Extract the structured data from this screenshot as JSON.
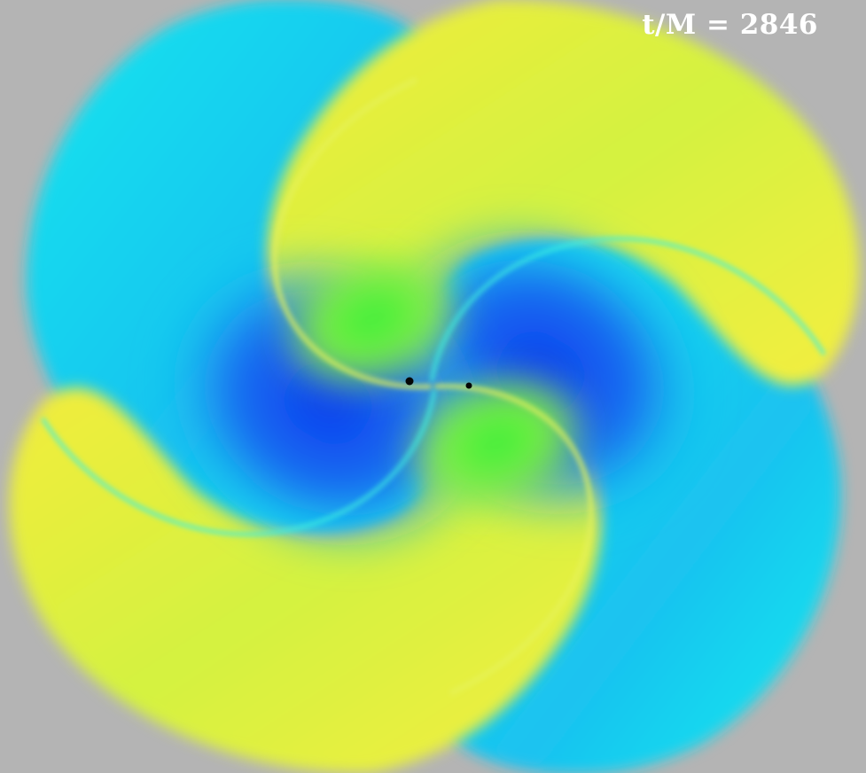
{
  "time_label": "t/M = 2846",
  "colors": {
    "background": "#b4b4b4",
    "deep_blue": "#0a3cf0",
    "blue": "#1a6ef0",
    "cyan": "#16e0ec",
    "green": "#3cf03c",
    "yellow_green": "#c8f040",
    "yellow": "#f2ec3c"
  },
  "objects": [
    "black-hole",
    "black-hole"
  ]
}
